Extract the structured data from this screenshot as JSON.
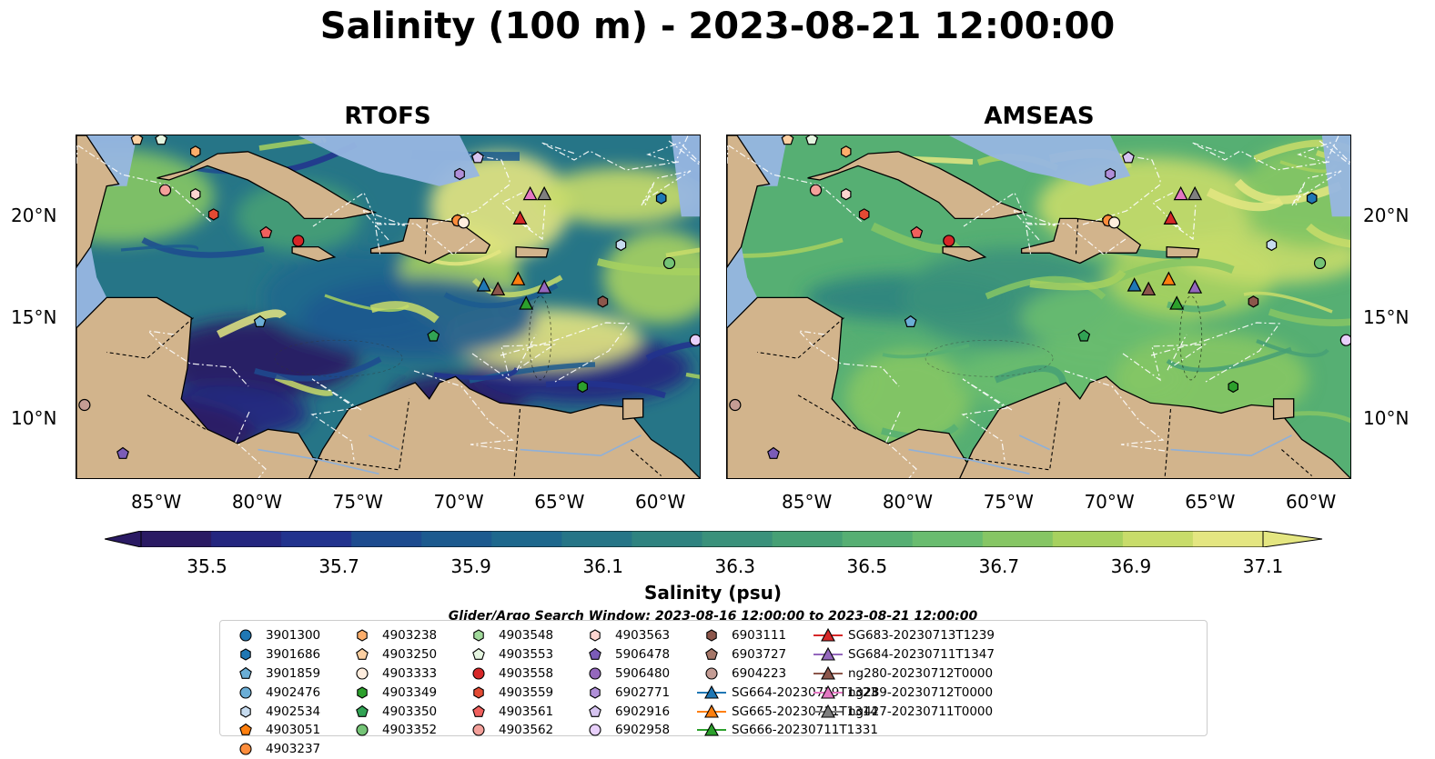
{
  "title": "Salinity (100 m) - 2023-08-21 12:00:00",
  "panels": [
    {
      "title": "RTOFS",
      "model": "rtofs"
    },
    {
      "title": "AMSEAS",
      "model": "amseas"
    }
  ],
  "map": {
    "lon_range": [
      -89,
      -58
    ],
    "lat_range": [
      7,
      24
    ],
    "lon_ticks": [
      "85°W",
      "80°W",
      "75°W",
      "70°W",
      "65°W",
      "60°W"
    ],
    "lat_ticks": [
      "20°N",
      "15°N",
      "10°N"
    ],
    "colors": {
      "land": "#d2b48c",
      "ocean_mask": "#97b6e1",
      "coastline": "#000000",
      "border": "#000000"
    }
  },
  "colorbar": {
    "label": "Salinity (psu)",
    "ticks": [
      "35.5",
      "35.7",
      "35.9",
      "36.1",
      "36.3",
      "36.5",
      "36.7",
      "36.9",
      "37.1"
    ],
    "range": [
      35.4,
      37.1
    ],
    "colors": [
      "#2a1a63",
      "#24267f",
      "#22338e",
      "#1d4b8f",
      "#1c5a8f",
      "#1e688d",
      "#267587",
      "#2f8380",
      "#3a917b",
      "#46a075",
      "#56af73",
      "#69bc6f",
      "#86c664",
      "#a7d15f",
      "#c8dc6a",
      "#e4e681"
    ],
    "extend": "both"
  },
  "search_window": "Glider/Argo Search Window: 2023-08-16 12:00:00 to 2023-08-21 12:00:00",
  "legend": [
    {
      "label": "3901300",
      "marker": "circle",
      "color": "#1f77b4"
    },
    {
      "label": "3901686",
      "marker": "hexagon",
      "color": "#1f77b4"
    },
    {
      "label": "3901859",
      "marker": "pentagon",
      "color": "#6baed6"
    },
    {
      "label": "4902476",
      "marker": "circle",
      "color": "#6baed6"
    },
    {
      "label": "4902534",
      "marker": "hexagon",
      "color": "#c6dbef"
    },
    {
      "label": "4903051",
      "marker": "pentagon",
      "color": "#ff7f0e"
    },
    {
      "label": "4903237",
      "marker": "circle",
      "color": "#fd8d3c"
    },
    {
      "label": "4903238",
      "marker": "hexagon",
      "color": "#fdae6b"
    },
    {
      "label": "4903250",
      "marker": "pentagon",
      "color": "#fdd0a2"
    },
    {
      "label": "4903333",
      "marker": "circle",
      "color": "#feedde"
    },
    {
      "label": "4903349",
      "marker": "hexagon",
      "color": "#2ca02c"
    },
    {
      "label": "4903350",
      "marker": "pentagon",
      "color": "#31a354"
    },
    {
      "label": "4903352",
      "marker": "circle",
      "color": "#74c476"
    },
    {
      "label": "4903548",
      "marker": "hexagon",
      "color": "#a1d99b"
    },
    {
      "label": "4903553",
      "marker": "pentagon",
      "color": "#e5f5e0"
    },
    {
      "label": "4903558",
      "marker": "circle",
      "color": "#d62728"
    },
    {
      "label": "4903559",
      "marker": "hexagon",
      "color": "#e34a33"
    },
    {
      "label": "4903561",
      "marker": "pentagon",
      "color": "#f0605d"
    },
    {
      "label": "4903562",
      "marker": "circle",
      "color": "#f4a09a"
    },
    {
      "label": "4903563",
      "marker": "hexagon",
      "color": "#fcd5d0"
    },
    {
      "label": "5906478",
      "marker": "pentagon",
      "color": "#7b5cb8"
    },
    {
      "label": "5906480",
      "marker": "circle",
      "color": "#9467bd"
    },
    {
      "label": "6902771",
      "marker": "hexagon",
      "color": "#b08fd8"
    },
    {
      "label": "6902916",
      "marker": "pentagon",
      "color": "#d6c4f0"
    },
    {
      "label": "6902958",
      "marker": "circle",
      "color": "#e8d0fb"
    },
    {
      "label": "6903111",
      "marker": "hexagon",
      "color": "#8c564b"
    },
    {
      "label": "6903727",
      "marker": "pentagon",
      "color": "#a67769"
    },
    {
      "label": "6904223",
      "marker": "circle",
      "color": "#c49c94"
    },
    {
      "label": "SG664-20230719T1323",
      "marker": "triangle-line",
      "color": "#1f77b4"
    },
    {
      "label": "SG665-20230711T1314",
      "marker": "triangle-line",
      "color": "#ff7f0e"
    },
    {
      "label": "SG666-20230711T1331",
      "marker": "triangle-line",
      "color": "#2ca02c"
    },
    {
      "label": "SG683-20230713T1239",
      "marker": "triangle-line",
      "color": "#d62728"
    },
    {
      "label": "SG684-20230711T1347",
      "marker": "triangle-line",
      "color": "#9467bd"
    },
    {
      "label": "ng280-20230712T0000",
      "marker": "triangle-line",
      "color": "#8c564b"
    },
    {
      "label": "ng289-20230712T0000",
      "marker": "triangle-line",
      "color": "#e377c2"
    },
    {
      "label": "ng427-20230711T0000",
      "marker": "triangle-line",
      "color": "#7f7f7f"
    }
  ],
  "observations": [
    {
      "id": "3901686",
      "lon": -60.0,
      "lat": 20.9
    },
    {
      "id": "3901859",
      "lon": -79.9,
      "lat": 14.8
    },
    {
      "id": "4902534",
      "lon": -62.0,
      "lat": 18.6
    },
    {
      "id": "4903051",
      "lon": -70.1,
      "lat": 19.8
    },
    {
      "id": "4903237",
      "lon": -70.1,
      "lat": 19.8
    },
    {
      "id": "4903238",
      "lon": -83.1,
      "lat": 23.2
    },
    {
      "id": "4903250",
      "lon": -86.0,
      "lat": 23.8
    },
    {
      "id": "4903333",
      "lon": -69.8,
      "lat": 19.7
    },
    {
      "id": "4903349",
      "lon": -63.9,
      "lat": 11.6
    },
    {
      "id": "4903350",
      "lon": -71.3,
      "lat": 14.1
    },
    {
      "id": "4903352",
      "lon": -59.6,
      "lat": 17.7
    },
    {
      "id": "4903553",
      "lon": -84.8,
      "lat": 23.8
    },
    {
      "id": "4903558",
      "lon": -78.0,
      "lat": 18.8
    },
    {
      "id": "4903559",
      "lon": -82.2,
      "lat": 20.1
    },
    {
      "id": "4903561",
      "lon": -79.6,
      "lat": 19.2
    },
    {
      "id": "4903562",
      "lon": -84.6,
      "lat": 21.3
    },
    {
      "id": "4903563",
      "lon": -83.1,
      "lat": 21.1
    },
    {
      "id": "5906478",
      "lon": -86.7,
      "lat": 8.3
    },
    {
      "id": "6902771",
      "lon": -70.0,
      "lat": 22.1
    },
    {
      "id": "6902916",
      "lon": -69.1,
      "lat": 22.9
    },
    {
      "id": "6902958",
      "lon": -58.3,
      "lat": 13.9
    },
    {
      "id": "6903111",
      "lon": -62.9,
      "lat": 15.8
    },
    {
      "id": "6904223",
      "lon": -88.6,
      "lat": 10.7
    },
    {
      "id": "SG664-20230719T1323",
      "lon": -68.8,
      "lat": 16.6
    },
    {
      "id": "SG665-20230711T1314",
      "lon": -67.1,
      "lat": 16.9
    },
    {
      "id": "SG666-20230711T1331",
      "lon": -66.7,
      "lat": 15.7
    },
    {
      "id": "SG683-20230713T1239",
      "lon": -67.0,
      "lat": 19.9
    },
    {
      "id": "SG684-20230711T1347",
      "lon": -65.8,
      "lat": 16.5
    },
    {
      "id": "ng280-20230712T0000",
      "lon": -68.1,
      "lat": 16.4
    },
    {
      "id": "ng289-20230712T0000",
      "lon": -66.5,
      "lat": 21.1
    },
    {
      "id": "ng427-20230711T0000",
      "lon": -65.8,
      "lat": 21.1
    }
  ]
}
